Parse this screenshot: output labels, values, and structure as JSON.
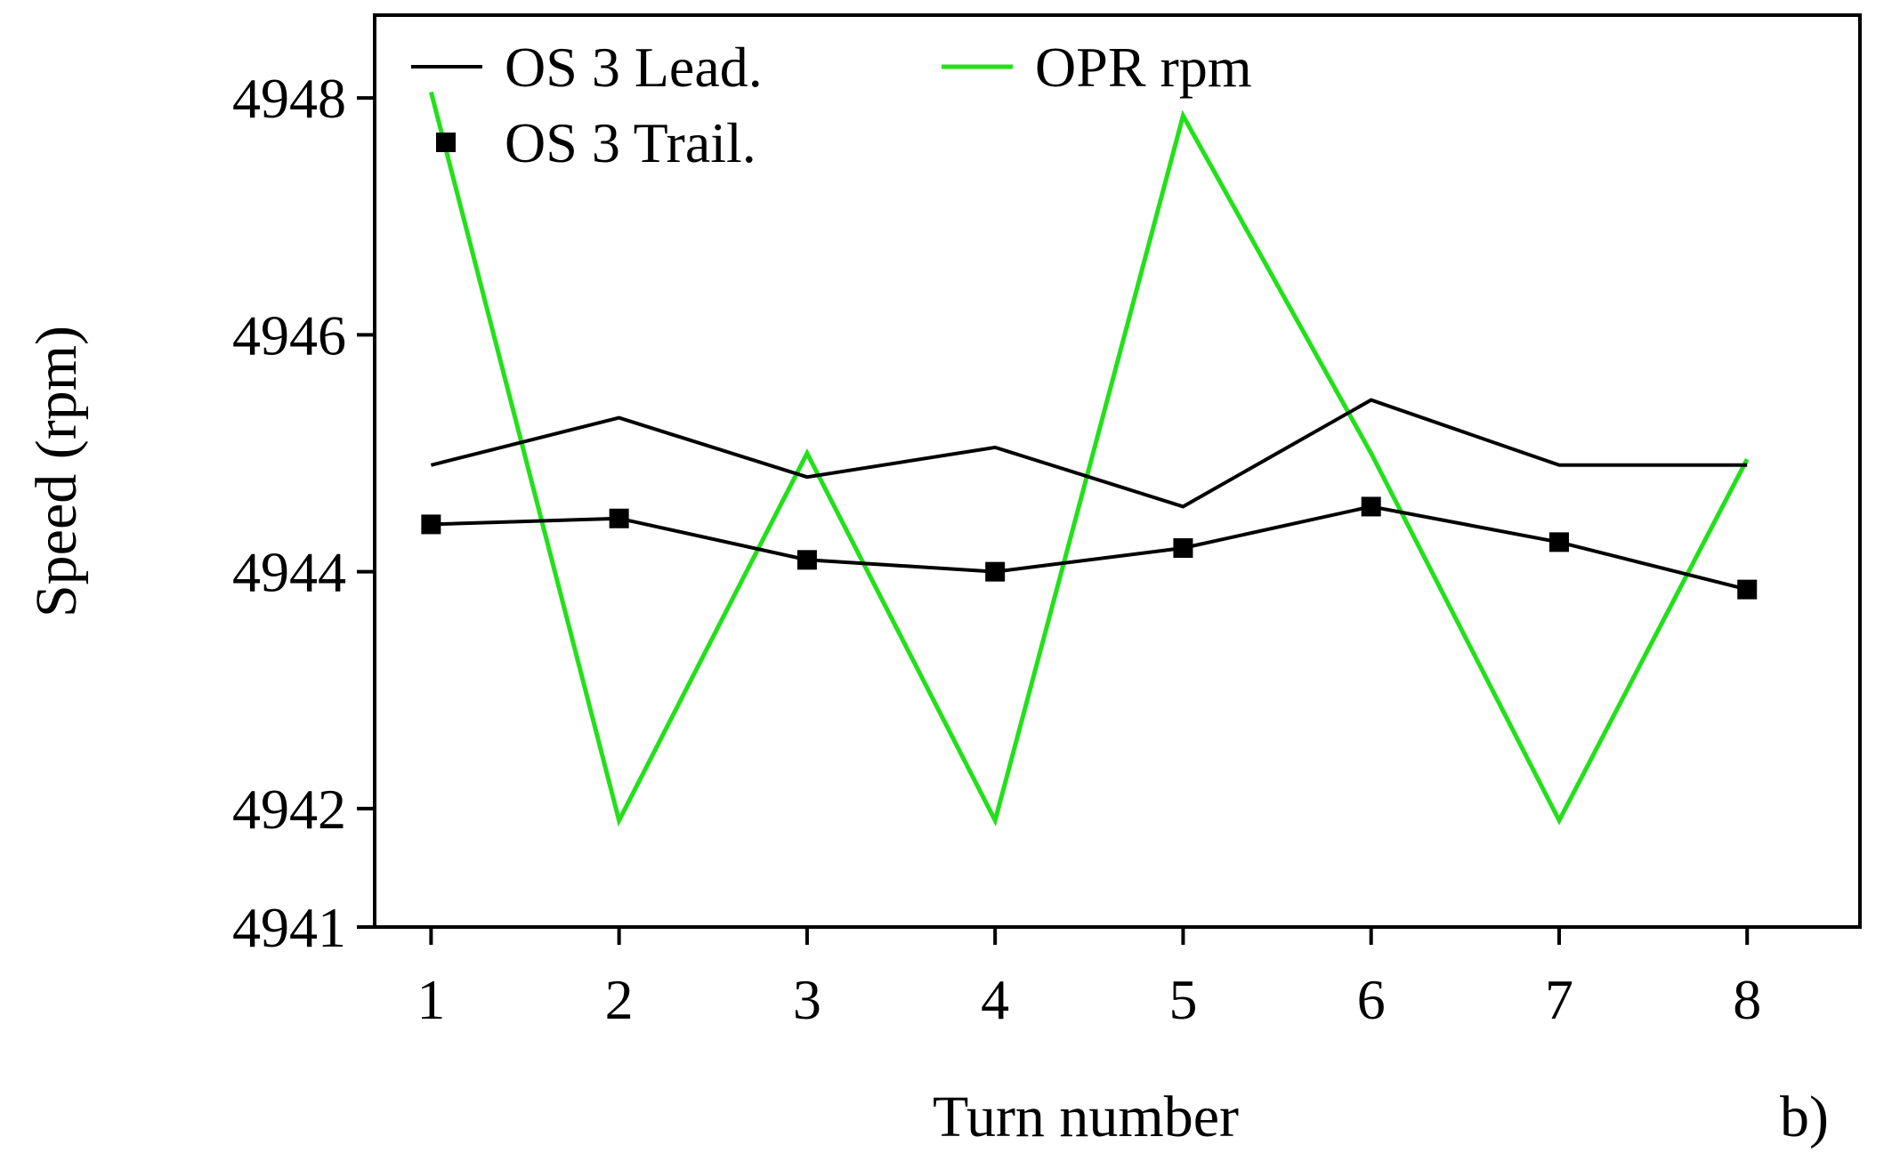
{
  "chart_data": {
    "type": "line",
    "x": [
      1,
      2,
      3,
      4,
      5,
      6,
      7,
      8
    ],
    "xlabel": "Turn number",
    "ylabel": "Speed (rpm)",
    "xlim": [
      0.7,
      8.6
    ],
    "ylim": [
      4941,
      4948.7
    ],
    "xticks": [
      1,
      2,
      3,
      4,
      5,
      6,
      7,
      8
    ],
    "yticks": [
      4941,
      4942,
      4944,
      4946,
      4948
    ],
    "grid": false,
    "legend_position": "top-left",
    "panel_label": "b)",
    "series": [
      {
        "name": "OS 3 Lead.",
        "style": "line",
        "color": "#000000",
        "values": [
          4944.9,
          4945.3,
          4944.8,
          4945.05,
          4944.55,
          4945.45,
          4944.9,
          4944.9
        ]
      },
      {
        "name": "OS 3 Trail.",
        "style": "line-square-markers",
        "color": "#000000",
        "values": [
          4944.4,
          4944.45,
          4944.1,
          4944.0,
          4944.2,
          4944.55,
          4944.25,
          4943.85
        ]
      },
      {
        "name": "OPR rpm",
        "style": "line",
        "color": "#22e01a",
        "values": [
          4948.05,
          4941.9,
          4945.0,
          4941.9,
          4947.85,
          4945.0,
          4941.9,
          4944.95
        ]
      }
    ]
  }
}
